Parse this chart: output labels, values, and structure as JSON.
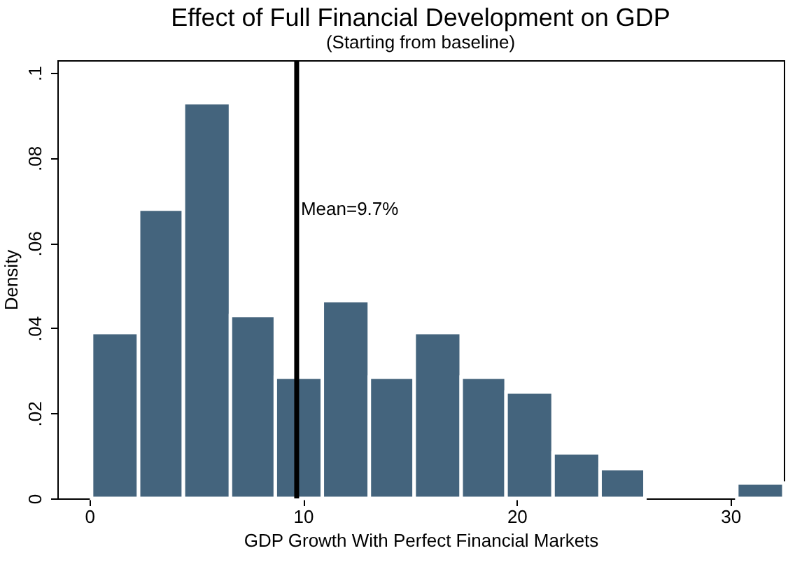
{
  "chart_data": {
    "type": "histogram",
    "title": "Effect of Full Financial Development on GDP",
    "subtitle": "(Starting from baseline)",
    "xlabel": "GDP Growth With Perfect Financial Markets",
    "ylabel": "Density",
    "bins": [
      0.1,
      2.3,
      4.4,
      6.6,
      8.7,
      10.9,
      13.1,
      15.2,
      17.4,
      19.5,
      21.7,
      23.9,
      26.0,
      30.3,
      32.5
    ],
    "values": [
      0.039,
      0.068,
      0.093,
      0.043,
      0.0285,
      0.0465,
      0.0285,
      0.039,
      0.0285,
      0.025,
      0.0107,
      0.007,
      0,
      0.0036
    ],
    "color": "#44647d",
    "xlim": [
      -1.5,
      32.5
    ],
    "xticks": [
      0,
      10,
      20,
      30
    ],
    "ylim": [
      0,
      0.103
    ],
    "yticks": [
      {
        "value": 0,
        "label": "0"
      },
      {
        "value": 0.02,
        "label": ".02"
      },
      {
        "value": 0.04,
        "label": ".04"
      },
      {
        "value": 0.06,
        "label": ".06"
      },
      {
        "value": 0.08,
        "label": ".08"
      },
      {
        "value": 0.1,
        "label": ".1"
      }
    ],
    "ref_lines": [
      {
        "axis": "x",
        "value": 9.7,
        "label": "Mean=9.7%",
        "color": "#000000"
      }
    ],
    "grid": false
  }
}
